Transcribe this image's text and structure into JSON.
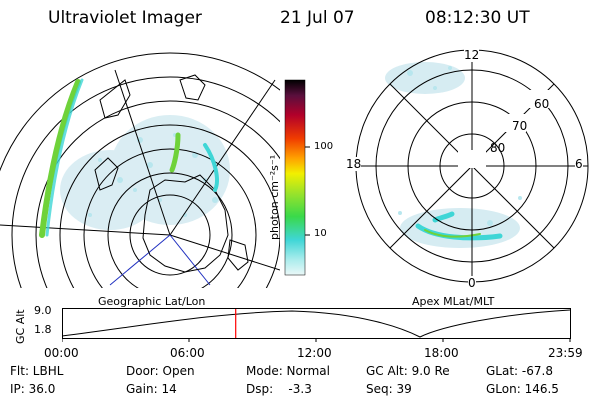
{
  "header": {
    "title": "Ultraviolet Imager",
    "date": "21 Jul 07",
    "time": "08:12:30 UT"
  },
  "colorbar": {
    "unit_label": "photon cm⁻²s⁻¹",
    "tick_labels": [
      "100",
      "10"
    ]
  },
  "polar_plot": {
    "label": "Apex MLat/MLT",
    "lat_labels": [
      "60",
      "70",
      "80"
    ],
    "mlt_labels": [
      "12",
      "18",
      "6",
      "0"
    ]
  },
  "geo_plot": {
    "label": "Geographic Lat/Lon"
  },
  "altitude_plot": {
    "ylabel": "GC Alt",
    "yticks": [
      "9.0",
      "1.8"
    ],
    "xticks": [
      "00:00",
      "06:00",
      "12:00",
      "18:00",
      "23:59"
    ],
    "current_time_fraction": 0.342
  },
  "info": {
    "filter": "Flt: LBHL",
    "door": "Door: Open",
    "mode": "Mode: Normal",
    "gc_alt": "GC Alt: 9.0 Re",
    "glat": "GLat: -67.8",
    "ip": "IP: 36.0",
    "gain": "Gain: 14",
    "dsp": "Dsp:    -3.3",
    "seq": "Seq: 39",
    "glon": "GLon: 146.5"
  },
  "colors": {
    "aurora_faint": "#cfe8ef",
    "aurora_cyan": "#3fd6d6",
    "aurora_green": "#6fd23a",
    "time_marker": "#ff0000"
  }
}
